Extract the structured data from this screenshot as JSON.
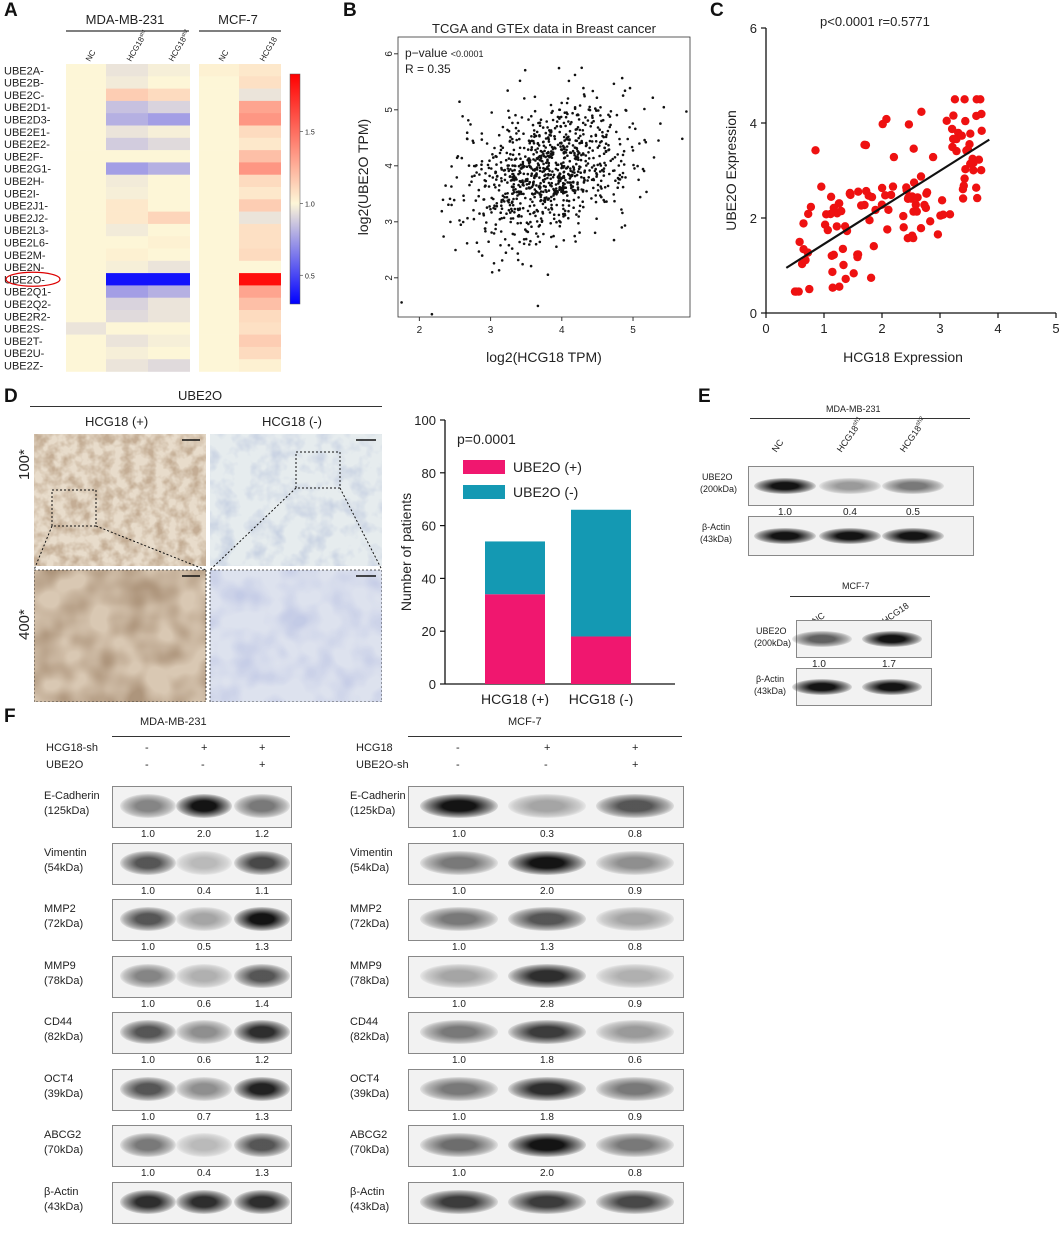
{
  "panels": {
    "A": "A",
    "B": "B",
    "C": "C",
    "D": "D",
    "E": "E",
    "F": "F"
  },
  "heatmap": {
    "groups": [
      "MDA-MB-231",
      "MCF-7"
    ],
    "columns": [
      "NC",
      "HCG18",
      "HCG18",
      "NC",
      "HCG18"
    ],
    "col_sup": [
      "",
      "sh1",
      "sh2",
      "",
      ""
    ],
    "rows": [
      "UBE2A",
      "UBE2B",
      "UBE2C",
      "UBE2D1",
      "UBE2D3",
      "UBE2E1",
      "UBE2E2",
      "UBE2F",
      "UBE2G1",
      "UBE2H",
      "UBE2I",
      "UBE2J1",
      "UBE2J2",
      "UBE2L3",
      "UBE2L6",
      "UBE2M",
      "UBE2N",
      "UBE2O",
      "UBE2Q1",
      "UBE2Q2",
      "UBE2R2",
      "UBE2S",
      "UBE2T",
      "UBE2U",
      "UBE2Z"
    ],
    "values": [
      [
        1.0,
        0.95,
        0.98,
        1.02,
        1.05
      ],
      [
        1.0,
        0.97,
        1.0,
        1.0,
        1.08
      ],
      [
        1.0,
        1.15,
        1.1,
        1.0,
        0.95
      ],
      [
        1.0,
        0.85,
        0.9,
        1.0,
        1.3
      ],
      [
        1.0,
        0.8,
        0.75,
        1.0,
        1.35
      ],
      [
        1.0,
        0.95,
        0.98,
        1.0,
        1.1
      ],
      [
        1.0,
        0.88,
        0.92,
        1.0,
        1.05
      ],
      [
        1.0,
        1.0,
        1.0,
        1.0,
        1.2
      ],
      [
        1.0,
        0.75,
        0.8,
        1.0,
        1.35
      ],
      [
        1.0,
        0.97,
        1.0,
        1.0,
        1.1
      ],
      [
        1.0,
        0.98,
        1.0,
        1.0,
        1.05
      ],
      [
        1.0,
        1.05,
        1.0,
        1.0,
        1.15
      ],
      [
        1.0,
        1.05,
        1.12,
        1.0,
        0.95
      ],
      [
        1.0,
        0.97,
        1.0,
        1.0,
        1.08
      ],
      [
        1.0,
        1.0,
        1.02,
        1.0,
        1.08
      ],
      [
        1.0,
        1.02,
        1.0,
        1.0,
        1.1
      ],
      [
        1.0,
        0.98,
        0.95,
        1.0,
        1.0
      ],
      [
        1.0,
        0.35,
        0.35,
        1.0,
        1.85
      ],
      [
        1.0,
        0.75,
        0.8,
        1.0,
        1.3
      ],
      [
        1.0,
        0.9,
        0.95,
        1.0,
        1.2
      ],
      [
        1.0,
        0.92,
        0.95,
        1.0,
        1.1
      ],
      [
        0.95,
        1.0,
        1.0,
        1.0,
        1.08
      ],
      [
        1.0,
        0.95,
        0.98,
        1.0,
        1.15
      ],
      [
        1.0,
        0.98,
        1.0,
        1.0,
        1.1
      ],
      [
        1.0,
        0.95,
        0.92,
        1.0,
        1.02
      ]
    ],
    "scale_ticks": [
      "0.5",
      "1.0",
      "1.5"
    ],
    "scale_min": 0.3,
    "scale_max": 1.9,
    "highlight_row": "UBE2O"
  },
  "chart_data": [
    {
      "type": "scatter",
      "panel": "B",
      "title": "TCGA and GTEx data in Breast cancer",
      "xlabel": "log2(HCG18 TPM)",
      "ylabel": "log2(UBE2O TPM)",
      "xlim": [
        1.7,
        5.8
      ],
      "ylim": [
        1.3,
        6.3
      ],
      "xticks": [
        "2",
        "3",
        "4",
        "5"
      ],
      "yticks": [
        "2",
        "3",
        "4",
        "5",
        "6"
      ],
      "annotation_p": "p−value",
      "annotation_p_val": "<0.0001",
      "annotation_r": "R = 0.35",
      "n_points": 1000,
      "r": 0.35,
      "x_mean": 3.8,
      "y_mean": 3.9
    },
    {
      "type": "scatter",
      "panel": "C",
      "title": "p<0.0001 r=0.5771",
      "xlabel": "HCG18 Expression",
      "ylabel": "UBE2O Expression",
      "xlim": [
        0,
        5
      ],
      "ylim": [
        0,
        6
      ],
      "xticks": [
        "0",
        "1",
        "2",
        "3",
        "4",
        "5"
      ],
      "yticks": [
        "0",
        "2",
        "4",
        "6"
      ],
      "fit_line": {
        "x0": 0.35,
        "y0": 0.95,
        "x1": 3.85,
        "y1": 3.65
      },
      "n_points": 130
    },
    {
      "type": "bar",
      "panel": "D",
      "stacked": true,
      "annotation": "p=0.0001",
      "categories": [
        "HCG18 (+)",
        "HCG18 (-)"
      ],
      "series": [
        {
          "name": "UBE2O (+)",
          "values": [
            34,
            18
          ],
          "color": "#f0176f"
        },
        {
          "name": "UBE2O (-)",
          "values": [
            20,
            48
          ],
          "color": "#1499b3"
        }
      ],
      "ylabel": "Number of patients",
      "ylim": [
        0,
        100
      ],
      "yticks": [
        "0",
        "20",
        "40",
        "60",
        "80",
        "100"
      ]
    }
  ],
  "ihc": {
    "title": "UBE2O",
    "cols": [
      "HCG18 (+)",
      "HCG18 (-)"
    ],
    "rows": [
      "100*",
      "400*"
    ]
  },
  "blotE": {
    "mda": {
      "title": "MDA-MB-231",
      "lanes": [
        "NC",
        "HCG18",
        "HCG18"
      ],
      "lane_sup": [
        "",
        "sh1",
        "sh2"
      ],
      "rows": [
        {
          "name": "UBE2O",
          "kda": "(200kDa)",
          "values": [
            "1.0",
            "0.4",
            "0.5"
          ],
          "intensity": [
            1.0,
            0.45,
            0.6
          ]
        },
        {
          "name": "β-Actin",
          "kda": "(43kDa)",
          "values": [],
          "intensity": [
            1.0,
            1.0,
            1.0
          ]
        }
      ]
    },
    "mcf": {
      "title": "MCF-7",
      "lanes": [
        "NC",
        "HCG18"
      ],
      "rows": [
        {
          "name": "UBE2O",
          "kda": "(200kDa)",
          "values": [
            "1.0",
            "1.7"
          ],
          "intensity": [
            0.7,
            1.0
          ]
        },
        {
          "name": "β-Actin",
          "kda": "(43kDa)",
          "values": [],
          "intensity": [
            1.0,
            1.0
          ]
        }
      ]
    }
  },
  "blotF": {
    "mda": {
      "title": "MDA-MB-231",
      "conditions": [
        {
          "label": "HCG18-sh",
          "signs": [
            "-",
            "+",
            "+"
          ]
        },
        {
          "label": "UBE2O",
          "signs": [
            "-",
            "-",
            "+"
          ]
        }
      ],
      "rows": [
        {
          "name": "E-Cadherin",
          "kda": "(125kDa)",
          "values": [
            "1.0",
            "2.0",
            "1.2"
          ],
          "intensity": [
            0.55,
            1.0,
            0.6
          ]
        },
        {
          "name": "Vimentin",
          "kda": "(54kDa)",
          "values": [
            "1.0",
            "0.4",
            "1.1"
          ],
          "intensity": [
            0.75,
            0.3,
            0.8
          ]
        },
        {
          "name": "MMP2",
          "kda": "(72kDa)",
          "values": [
            "1.0",
            "0.5",
            "1.3"
          ],
          "intensity": [
            0.75,
            0.4,
            1.0
          ]
        },
        {
          "name": "MMP9",
          "kda": "(78kDa)",
          "values": [
            "1.0",
            "0.6",
            "1.4"
          ],
          "intensity": [
            0.55,
            0.35,
            0.75
          ]
        },
        {
          "name": "CD44",
          "kda": "(82kDa)",
          "values": [
            "1.0",
            "0.6",
            "1.2"
          ],
          "intensity": [
            0.75,
            0.5,
            0.9
          ]
        },
        {
          "name": "OCT4",
          "kda": "(39kDa)",
          "values": [
            "1.0",
            "0.7",
            "1.3"
          ],
          "intensity": [
            0.75,
            0.5,
            0.95
          ]
        },
        {
          "name": "ABCG2",
          "kda": "(70kDa)",
          "values": [
            "1.0",
            "0.4",
            "1.3"
          ],
          "intensity": [
            0.6,
            0.3,
            0.75
          ]
        },
        {
          "name": "β-Actin",
          "kda": "(43kDa)",
          "values": [],
          "intensity": [
            0.9,
            0.9,
            0.9
          ]
        }
      ]
    },
    "mcf": {
      "title": "MCF-7",
      "conditions": [
        {
          "label": "HCG18",
          "signs": [
            "-",
            "+",
            "+"
          ]
        },
        {
          "label": "UBE2O-sh",
          "signs": [
            "-",
            "-",
            "+"
          ]
        }
      ],
      "rows": [
        {
          "name": "E-Cadherin",
          "kda": "(125kDa)",
          "values": [
            "1.0",
            "0.3",
            "0.8"
          ],
          "intensity": [
            1.0,
            0.4,
            0.75
          ]
        },
        {
          "name": "Vimentin",
          "kda": "(54kDa)",
          "values": [
            "1.0",
            "2.0",
            "0.9"
          ],
          "intensity": [
            0.6,
            1.0,
            0.5
          ]
        },
        {
          "name": "MMP2",
          "kda": "(72kDa)",
          "values": [
            "1.0",
            "1.3",
            "0.8"
          ],
          "intensity": [
            0.6,
            0.75,
            0.4
          ]
        },
        {
          "name": "MMP9",
          "kda": "(78kDa)",
          "values": [
            "1.0",
            "2.8",
            "0.9"
          ],
          "intensity": [
            0.4,
            0.9,
            0.35
          ]
        },
        {
          "name": "CD44",
          "kda": "(82kDa)",
          "values": [
            "1.0",
            "1.8",
            "0.6"
          ],
          "intensity": [
            0.6,
            0.85,
            0.45
          ]
        },
        {
          "name": "OCT4",
          "kda": "(39kDa)",
          "values": [
            "1.0",
            "1.8",
            "0.9"
          ],
          "intensity": [
            0.6,
            0.9,
            0.6
          ]
        },
        {
          "name": "ABCG2",
          "kda": "(70kDa)",
          "values": [
            "1.0",
            "2.0",
            "0.8"
          ],
          "intensity": [
            0.65,
            1.0,
            0.6
          ]
        },
        {
          "name": "β-Actin",
          "kda": "(43kDa)",
          "values": [],
          "intensity": [
            0.85,
            0.85,
            0.8
          ]
        }
      ]
    }
  }
}
